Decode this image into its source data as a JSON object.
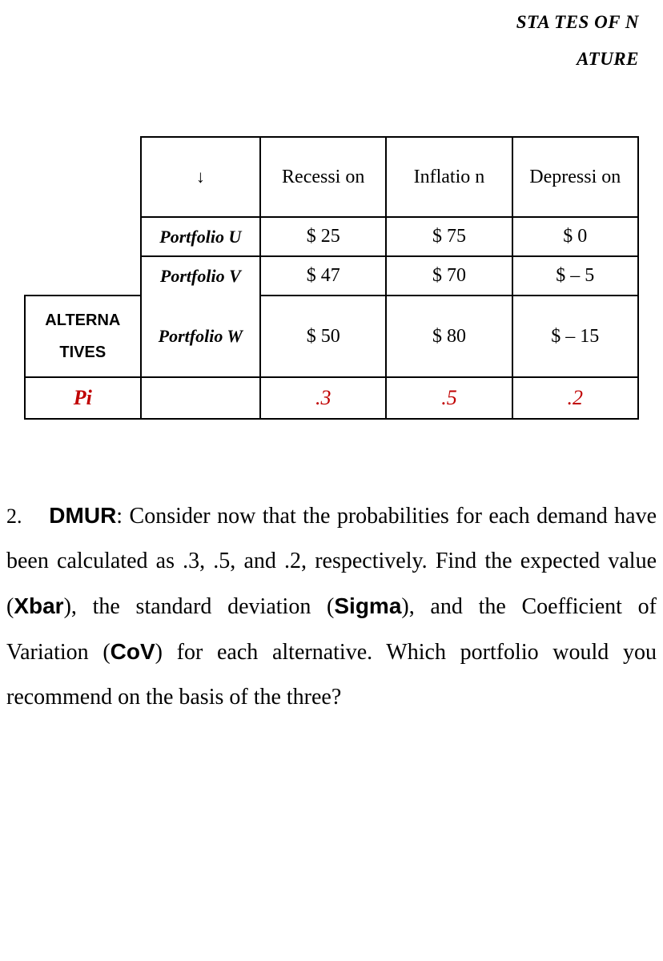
{
  "header": {
    "label": "STA TES OF N ATURE"
  },
  "table": {
    "row_header_alt": "ALTERNA TIVES",
    "col_arrow": "↓",
    "state_headers": [
      "Recessi on",
      "Inflatio n",
      "Depressi on"
    ],
    "portfolios": [
      {
        "name": "Portfolio U",
        "values": [
          "$ 25",
          "$ 75",
          "$ 0"
        ]
      },
      {
        "name": "Portfolio V",
        "values": [
          "$ 47",
          "$  70",
          "$ – 5"
        ]
      },
      {
        "name": "Portfolio W",
        "values": [
          "$ 50",
          "$ 80",
          "$ – 15"
        ]
      }
    ],
    "pi_label": "Pi",
    "probs": [
      ".3",
      ".5",
      ".2"
    ]
  },
  "paragraph": {
    "num": "2.",
    "label": "DMUR",
    "text1": ": Consider now that the probabilities for each demand have been calculated as .3, .5, and .2, respectively. Find the expected value (",
    "xbar": "Xbar",
    "text2": "), the standard deviation (",
    "sigma": "Sigma",
    "text3": "), and the Coefficient of Variation (",
    "cov": "CoV",
    "text4": ") for each alternative. Which portfolio would you recommend on the basis of the three?"
  }
}
